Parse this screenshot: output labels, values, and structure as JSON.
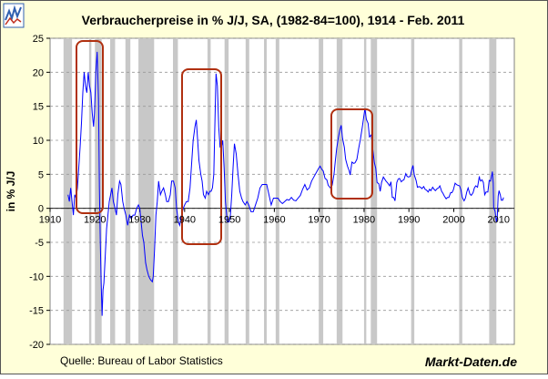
{
  "chart_data": {
    "type": "line",
    "title": "Verbraucherpreise in % J/J, SA, (1982-84=100), 1914 - Feb. 2011",
    "y_label": "in % J/J",
    "source": "Quelle: Bureau of Labor Statistics",
    "brand": "Markt-Daten.de",
    "color": "#0000ff",
    "recession_color": "#c8c8c8",
    "grid": true,
    "xlim": [
      1910,
      2013.5
    ],
    "ylim": [
      -20,
      25
    ],
    "xticks": [
      1910,
      1920,
      1930,
      1940,
      1950,
      1960,
      1970,
      1980,
      1990,
      2000,
      2010
    ],
    "yticks": [
      25,
      20,
      15,
      10,
      5,
      0,
      -5,
      -10,
      -15,
      -20
    ],
    "recessions": [
      [
        1913.0,
        1914.9
      ],
      [
        1918.7,
        1919.2
      ],
      [
        1920.0,
        1921.5
      ],
      [
        1923.4,
        1924.5
      ],
      [
        1926.8,
        1927.9
      ],
      [
        1929.7,
        1933.2
      ],
      [
        1937.4,
        1938.5
      ],
      [
        1945.1,
        1945.8
      ],
      [
        1948.9,
        1949.8
      ],
      [
        1953.6,
        1954.4
      ],
      [
        1957.7,
        1958.3
      ],
      [
        1960.3,
        1961.1
      ],
      [
        1969.9,
        1970.9
      ],
      [
        1973.9,
        1975.2
      ],
      [
        1980.0,
        1980.5
      ],
      [
        1981.5,
        1982.9
      ],
      [
        1990.5,
        1991.2
      ],
      [
        2001.2,
        2001.9
      ],
      [
        2007.9,
        2009.5
      ]
    ],
    "x": [
      1914.0,
      1914.3,
      1914.6,
      1914.9,
      1915.2,
      1915.5,
      1915.8,
      1916.1,
      1916.4,
      1916.7,
      1917.0,
      1917.3,
      1917.6,
      1917.9,
      1918.2,
      1918.5,
      1918.8,
      1919.1,
      1919.4,
      1919.7,
      1919.9,
      1920.2,
      1920.5,
      1920.8,
      1921.0,
      1921.2,
      1921.4,
      1921.6,
      1921.8,
      1922.0,
      1922.3,
      1922.6,
      1922.9,
      1923.2,
      1923.5,
      1923.8,
      1924.1,
      1924.5,
      1924.8,
      1925.1,
      1925.5,
      1925.8,
      1926.2,
      1926.5,
      1926.9,
      1927.3,
      1927.7,
      1928.1,
      1928.5,
      1928.9,
      1929.3,
      1929.7,
      1930.0,
      1930.3,
      1930.6,
      1930.9,
      1931.3,
      1931.6,
      1932.0,
      1932.4,
      1932.8,
      1933.0,
      1933.3,
      1933.6,
      1933.9,
      1934.2,
      1934.6,
      1934.9,
      1935.3,
      1935.7,
      1936.0,
      1936.4,
      1936.8,
      1937.1,
      1937.5,
      1937.9,
      1938.2,
      1938.6,
      1938.9,
      1939.3,
      1939.7,
      1940.0,
      1940.4,
      1940.8,
      1941.2,
      1941.6,
      1941.9,
      1942.3,
      1942.6,
      1942.9,
      1943.2,
      1943.6,
      1943.9,
      1944.2,
      1944.6,
      1944.9,
      1945.3,
      1945.6,
      1945.9,
      1946.2,
      1946.5,
      1946.8,
      1947.0,
      1947.3,
      1947.6,
      1947.9,
      1948.2,
      1948.5,
      1948.8,
      1949.1,
      1949.5,
      1949.9,
      1950.2,
      1950.5,
      1950.8,
      1951.1,
      1951.5,
      1951.9,
      1952.3,
      1952.7,
      1953.0,
      1953.5,
      1953.9,
      1954.3,
      1954.8,
      1955.3,
      1955.8,
      1956.3,
      1956.8,
      1957.3,
      1957.8,
      1958.3,
      1958.8,
      1959.3,
      1959.8,
      1960.3,
      1960.8,
      1961.3,
      1961.8,
      1962.3,
      1962.8,
      1963.3,
      1963.8,
      1964.3,
      1964.8,
      1965.3,
      1965.8,
      1966.3,
      1966.8,
      1967.3,
      1967.8,
      1968.3,
      1968.8,
      1969.3,
      1969.8,
      1970.2,
      1970.6,
      1970.9,
      1971.3,
      1971.7,
      1972.0,
      1972.5,
      1972.9,
      1973.3,
      1973.6,
      1973.9,
      1974.3,
      1974.6,
      1974.9,
      1975.2,
      1975.6,
      1975.9,
      1976.3,
      1976.7,
      1976.9,
      1977.3,
      1977.7,
      1978.0,
      1978.4,
      1978.8,
      1979.2,
      1979.6,
      1979.9,
      1980.2,
      1980.5,
      1980.9,
      1981.2,
      1981.6,
      1981.9,
      1982.3,
      1982.6,
      1982.9,
      1983.3,
      1983.6,
      1983.9,
      1984.3,
      1984.6,
      1984.9,
      1985.3,
      1985.7,
      1986.0,
      1986.3,
      1986.6,
      1986.9,
      1987.3,
      1987.6,
      1987.9,
      1988.3,
      1988.6,
      1988.9,
      1989.3,
      1989.6,
      1989.9,
      1990.3,
      1990.6,
      1990.9,
      1991.2,
      1991.6,
      1991.9,
      1992.3,
      1992.6,
      1992.9,
      1993.3,
      1993.6,
      1993.9,
      1994.3,
      1994.6,
      1994.9,
      1995.3,
      1995.6,
      1995.9,
      1996.3,
      1996.6,
      1996.9,
      1997.3,
      1997.6,
      1997.9,
      1998.3,
      1998.6,
      1998.9,
      1999.3,
      1999.6,
      1999.9,
      2000.3,
      2000.6,
      2000.9,
      2001.3,
      2001.6,
      2001.9,
      2002.3,
      2002.6,
      2002.9,
      2003.2,
      2003.6,
      2003.9,
      2004.3,
      2004.6,
      2004.9,
      2005.3,
      2005.7,
      2005.8,
      2006.0,
      2006.3,
      2006.6,
      2006.9,
      2007.2,
      2007.6,
      2007.9,
      2008.2,
      2008.5,
      2008.6,
      2008.8,
      2008.9,
      2009.2,
      2009.5,
      2009.7,
      2009.9,
      2010.1,
      2010.4,
      2010.6,
      2010.9,
      2011.1
    ],
    "values": [
      2,
      1,
      3,
      1,
      -1,
      2,
      1.5,
      3,
      6,
      9,
      12.5,
      17,
      20,
      18,
      17,
      20,
      18,
      17,
      14,
      12,
      14,
      20,
      23,
      16,
      3,
      -5,
      -11,
      -15.8,
      -12,
      -11,
      -7,
      -3,
      -1,
      1,
      2,
      3,
      1,
      0,
      -1,
      2,
      4,
      3.5,
      1,
      0,
      -1,
      -2.5,
      -1,
      -1.5,
      -1,
      -1,
      0,
      0.5,
      0,
      -2,
      -4,
      -5,
      -8,
      -9,
      -10,
      -10.5,
      -10.8,
      -10,
      -6,
      -1,
      1,
      4,
      2,
      2.5,
      3,
      2,
      1,
      1,
      2,
      4,
      4,
      3,
      0,
      -2,
      -2.5,
      -1,
      0,
      0.5,
      1,
      1,
      3,
      7,
      10,
      12,
      13,
      10,
      7,
      5,
      4,
      2,
      1.5,
      2.5,
      2,
      2.5,
      2.5,
      3,
      5,
      14,
      19.8,
      18,
      12,
      9,
      9,
      10,
      6,
      1,
      -2,
      -2,
      -1,
      2,
      6,
      9.5,
      8,
      5,
      2.5,
      1.5,
      1,
      0.5,
      1,
      0.5,
      -0.5,
      -0.5,
      0.5,
      1.5,
      3,
      3.5,
      3.5,
      3.5,
      2,
      0.5,
      1.5,
      1.5,
      1.5,
      1,
      0.7,
      1,
      1.3,
      1.2,
      1.6,
      1.2,
      1.1,
      1.5,
      1.9,
      2.8,
      3.5,
      2.7,
      3.0,
      4.0,
      4.6,
      5.2,
      5.8,
      6.2,
      5.7,
      5.5,
      4.4,
      4.2,
      3.4,
      3.0,
      3.4,
      5.0,
      7.0,
      8.8,
      10.5,
      11.5,
      12.2,
      10.3,
      9.0,
      7.2,
      6.2,
      5.5,
      4.9,
      6.8,
      6.6,
      6.7,
      7.2,
      8.8,
      10.2,
      11.9,
      13.3,
      14.7,
      13.1,
      12.5,
      10.5,
      10.8,
      8.9,
      6.7,
      5.9,
      3.8,
      3.6,
      2.5,
      3.8,
      4.6,
      4.3,
      4.0,
      3.7,
      3.3,
      3.9,
      1.6,
      1.6,
      1.1,
      3.8,
      4.3,
      4.4,
      3.9,
      4.1,
      4.2,
      5.1,
      4.7,
      4.6,
      4.7,
      5.6,
      6.3,
      4.9,
      4.1,
      3.1,
      3.2,
      3.1,
      2.9,
      3.2,
      2.8,
      2.7,
      2.4,
      2.8,
      2.6,
      3.1,
      2.8,
      2.6,
      2.9,
      3.0,
      3.3,
      2.5,
      2.2,
      1.8,
      1.4,
      1.6,
      1.6,
      2.3,
      2.3,
      2.7,
      3.7,
      3.5,
      3.4,
      3.3,
      2.7,
      1.6,
      1.1,
      1.5,
      2.4,
      3.0,
      2.1,
      1.9,
      2.3,
      3.0,
      3.3,
      3.1,
      4.7,
      4.3,
      4.0,
      4.2,
      3.8,
      2.0,
      2.4,
      2.4,
      4.1,
      4.0,
      5.0,
      5.4,
      3.7,
      0.1,
      -0.4,
      -2.0,
      -1.3,
      1.8,
      2.6,
      1.9,
      1.2,
      1.2,
      1.6
    ]
  }
}
